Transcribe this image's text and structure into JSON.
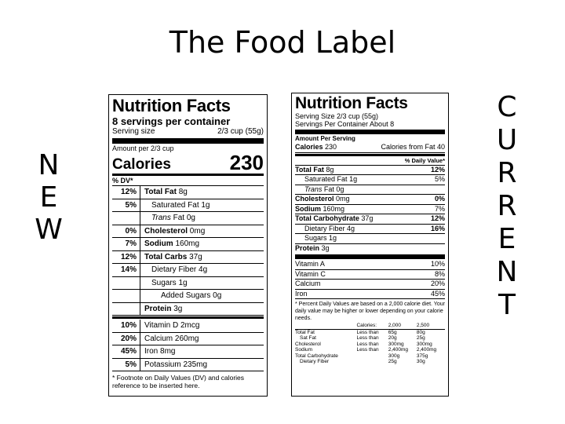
{
  "slide": {
    "title": "The Food Label",
    "left_letters": [
      "N",
      "E",
      "W"
    ],
    "right_letters": [
      "C",
      "U",
      "R",
      "R",
      "E",
      "N",
      "T"
    ]
  },
  "new_label": {
    "title": "Nutrition Facts",
    "servings": "8 servings per container",
    "serving_size_label": "Serving size",
    "serving_size_value": "2/3 cup (55g)",
    "amount_per": "Amount per 2/3 cup",
    "calories_label": "Calories",
    "calories_value": "230",
    "dv_header": "% DV*",
    "rows": [
      {
        "pct": "12%",
        "name": "Total Fat",
        "amount": "8g"
      },
      {
        "pct": "5%",
        "name": "Saturated Fat",
        "amount": "1g"
      },
      {
        "pct": "",
        "name": "Trans",
        "name2": "Fat",
        "amount": "0g"
      },
      {
        "pct": "0%",
        "name": "Cholesterol",
        "amount": "0mg"
      },
      {
        "pct": "7%",
        "name": "Sodium",
        "amount": "160mg"
      },
      {
        "pct": "12%",
        "name": "Total Carbs",
        "amount": "37g"
      },
      {
        "pct": "14%",
        "name": "Dietary Fiber",
        "amount": "4g"
      },
      {
        "pct": "",
        "name": "Sugars",
        "amount": "1g"
      },
      {
        "pct": "",
        "name": "Added Sugars",
        "amount": "0g"
      },
      {
        "pct": "",
        "name": "Protein",
        "amount": "3g"
      },
      {
        "pct": "10%",
        "name": "Vitamin D",
        "amount": "2mcg"
      },
      {
        "pct": "20%",
        "name": "Calcium",
        "amount": "260mg"
      },
      {
        "pct": "45%",
        "name": "Iron",
        "amount": "8mg"
      },
      {
        "pct": "5%",
        "name": "Potassium",
        "amount": "235mg"
      }
    ],
    "footnote": "* Footnote on Daily Values (DV) and calories reference to be inserted here."
  },
  "current_label": {
    "title": "Nutrition Facts",
    "serving_size": "Serving Size 2/3 cup (55g)",
    "servings_per": "Servings Per Container About 8",
    "amount_per": "Amount Per Serving",
    "calories_label": "Calories",
    "calories_value": "230",
    "calories_fat": "Calories from Fat 40",
    "dv_header": "% Daily Value*",
    "rows": [
      {
        "name": "Total Fat",
        "amount": "8g",
        "pct": "12%"
      },
      {
        "name": "Saturated Fat",
        "amount": "1g",
        "pct": "5%"
      },
      {
        "name": "Trans",
        "name2": "Fat",
        "amount": "0g",
        "pct": ""
      },
      {
        "name": "Cholesterol",
        "amount": "0mg",
        "pct": "0%"
      },
      {
        "name": "Sodium",
        "amount": "160mg",
        "pct": "7%"
      },
      {
        "name": "Total Carbohydrate",
        "amount": "37g",
        "pct": "12%"
      },
      {
        "name": "Dietary Fiber",
        "amount": "4g",
        "pct": "16%"
      },
      {
        "name": "Sugars",
        "amount": "1g",
        "pct": ""
      },
      {
        "name": "Protein",
        "amount": "3g",
        "pct": ""
      }
    ],
    "vitamins": [
      {
        "name": "Vitamin A",
        "pct": "10%"
      },
      {
        "name": "Vitamin C",
        "pct": "8%"
      },
      {
        "name": "Calcium",
        "pct": "20%"
      },
      {
        "name": "Iron",
        "pct": "45%"
      }
    ],
    "footnote": "* Percent Daily Values are based on a 2,000 calorie diet. Your daily value may be higher or lower depending on your calorie needs.",
    "ftable": {
      "head": [
        "",
        "Calories:",
        "2,000",
        "2,500"
      ],
      "rows": [
        [
          "Total Fat",
          "Less than",
          "65g",
          "80g"
        ],
        [
          "Sat Fat",
          "Less than",
          "20g",
          "25g"
        ],
        [
          "Cholesterol",
          "Less than",
          "300mg",
          "300mg"
        ],
        [
          "Sodium",
          "Less than",
          "2,400mg",
          "2,400mg"
        ],
        [
          "Total Carbohydrate",
          "",
          "300g",
          "375g"
        ],
        [
          "Dietary Fiber",
          "",
          "25g",
          "30g"
        ]
      ]
    }
  }
}
